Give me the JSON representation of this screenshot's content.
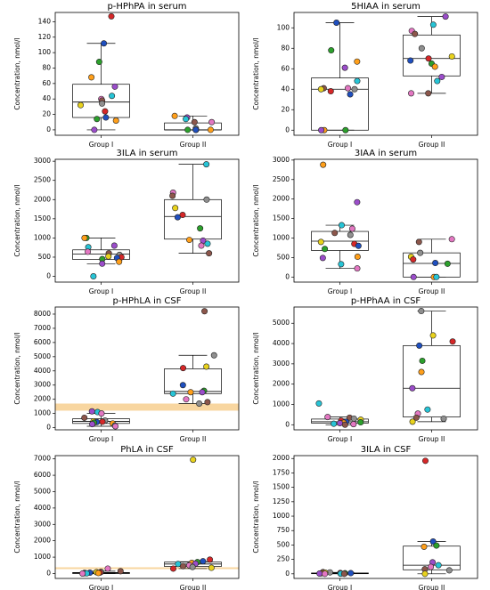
{
  "point_colors": [
    "#d62728",
    "#1f4fbf",
    "#2ca02c",
    "#ff9f1a",
    "#9b4dca",
    "#27c4d6",
    "#e377c2",
    "#8c564b",
    "#8f8f8f",
    "#e8d21d"
  ],
  "chart_data": [
    {
      "type": "box",
      "title": "p-HPhPA in serum",
      "ylabel": "Concentration, nmol/l",
      "ylim": [
        -7,
        152
      ],
      "yticks": [
        0,
        20,
        40,
        60,
        80,
        100,
        120,
        140
      ],
      "groups": [
        {
          "name": "Group I",
          "box": {
            "whislo": 0,
            "q1": 16,
            "med": 36,
            "q3": 59,
            "whishi": 112
          },
          "points": [
            147,
            112,
            88,
            68,
            56,
            44,
            40,
            38,
            34,
            32,
            24,
            16,
            14,
            12,
            0
          ]
        },
        {
          "name": "Group II",
          "box": {
            "whislo": 0,
            "q1": 0,
            "med": 0,
            "q3": 9,
            "whishi": 18
          },
          "points": [
            18,
            16,
            14,
            10,
            10,
            2,
            0,
            0,
            0,
            0,
            0
          ]
        }
      ]
    },
    {
      "type": "box",
      "title": "5HIAA in serum",
      "ylabel": "Concentration, nmol/l",
      "ylim": [
        -5,
        115
      ],
      "yticks": [
        0,
        20,
        40,
        60,
        80,
        100
      ],
      "groups": [
        {
          "name": "Group I",
          "box": {
            "whislo": 0,
            "q1": 0,
            "med": 40,
            "q3": 51,
            "whishi": 105
          },
          "points": [
            105,
            78,
            67,
            61,
            48,
            41,
            41,
            40,
            40,
            38,
            35,
            0,
            0,
            0
          ]
        },
        {
          "name": "Group II",
          "box": {
            "whislo": 36,
            "q1": 53,
            "med": 70,
            "q3": 93,
            "whishi": 111
          },
          "points": [
            111,
            103,
            97,
            94,
            80,
            72,
            70,
            68,
            65,
            62,
            52,
            48,
            36,
            36
          ]
        }
      ]
    },
    {
      "type": "box",
      "title": "3ILA in serum",
      "ylabel": "Concentration, nmol/l",
      "ylim": [
        -150,
        3050
      ],
      "yticks": [
        0,
        500,
        1000,
        1500,
        2000,
        2500,
        3000
      ],
      "groups": [
        {
          "name": "Group I",
          "box": {
            "whislo": 330,
            "q1": 440,
            "med": 580,
            "q3": 690,
            "whishi": 1000
          },
          "points": [
            1000,
            1000,
            800,
            760,
            640,
            600,
            560,
            520,
            500,
            480,
            450,
            380,
            330,
            0
          ]
        },
        {
          "name": "Group II",
          "box": {
            "whislo": 600,
            "q1": 970,
            "med": 1560,
            "q3": 2000,
            "whishi": 2920
          },
          "points": [
            2920,
            2180,
            2100,
            2000,
            1780,
            1600,
            1540,
            1250,
            950,
            930,
            850,
            800,
            600
          ]
        }
      ]
    },
    {
      "type": "box",
      "title": "3IAA in serum",
      "ylabel": "Concentration, nmol/l",
      "ylim": [
        -130,
        3020
      ],
      "yticks": [
        0,
        500,
        1000,
        1500,
        2000,
        2500,
        3000
      ],
      "groups": [
        {
          "name": "Group I",
          "box": {
            "whislo": 220,
            "q1": 680,
            "med": 920,
            "q3": 1170,
            "whishi": 1330
          },
          "points": [
            2880,
            1920,
            1330,
            1240,
            1130,
            1080,
            900,
            850,
            800,
            720,
            520,
            490,
            330,
            220
          ]
        },
        {
          "name": "Group II",
          "box": {
            "whislo": 0,
            "q1": 0,
            "med": 350,
            "q3": 620,
            "whishi": 970
          },
          "points": [
            970,
            900,
            620,
            520,
            450,
            360,
            340,
            0,
            0,
            0
          ]
        }
      ]
    },
    {
      "type": "box",
      "title": "p-HPhLA in CSF",
      "ylabel": "Concentration, nmol/l",
      "ylim": [
        -150,
        8500
      ],
      "yticks": [
        0,
        1000,
        2000,
        3000,
        4000,
        5000,
        6000,
        7000,
        8000
      ],
      "band": [
        1200,
        1700
      ],
      "groups": [
        {
          "name": "Group I",
          "box": {
            "whislo": 100,
            "q1": 300,
            "med": 440,
            "q3": 630,
            "whishi": 1000
          },
          "points": [
            1150,
            1100,
            1000,
            700,
            500,
            450,
            420,
            400,
            350,
            300,
            250,
            150,
            100
          ]
        },
        {
          "name": "Group II",
          "box": {
            "whislo": 1700,
            "q1": 2400,
            "med": 2550,
            "q3": 4150,
            "whishi": 5100
          },
          "points": [
            8200,
            5100,
            4300,
            4200,
            3000,
            2600,
            2500,
            2500,
            2400,
            2000,
            1800,
            1700
          ]
        }
      ]
    },
    {
      "type": "box",
      "title": "p-HPhAA in CSF",
      "ylabel": "Concentration, nmol/l",
      "ylim": [
        -250,
        5800
      ],
      "yticks": [
        0,
        1000,
        2000,
        3000,
        4000,
        5000
      ],
      "groups": [
        {
          "name": "Group I",
          "box": {
            "whislo": 0,
            "q1": 80,
            "med": 150,
            "q3": 280,
            "whishi": 380
          },
          "points": [
            1050,
            380,
            350,
            300,
            250,
            200,
            150,
            120,
            100,
            80,
            50,
            30,
            0
          ]
        },
        {
          "name": "Group II",
          "box": {
            "whislo": 150,
            "q1": 380,
            "med": 1800,
            "q3": 3900,
            "whishi": 5600
          },
          "points": [
            5600,
            4400,
            4100,
            3900,
            3150,
            2600,
            1800,
            750,
            550,
            350,
            300,
            150
          ]
        }
      ]
    },
    {
      "type": "box",
      "title": "PhLA in CSF",
      "ylabel": "Concentration, nmol/l",
      "ylim": [
        -300,
        7200
      ],
      "yticks": [
        0,
        1000,
        2000,
        3000,
        4000,
        5000,
        6000,
        7000
      ],
      "band": [
        270,
        380
      ],
      "groups": [
        {
          "name": "Group I",
          "box": {
            "whislo": 0,
            "q1": 0,
            "med": 30,
            "q3": 60,
            "whishi": 140
          },
          "points": [
            300,
            140,
            100,
            80,
            60,
            50,
            40,
            30,
            20,
            10,
            0
          ]
        },
        {
          "name": "Group II",
          "box": {
            "whislo": 300,
            "q1": 430,
            "med": 580,
            "q3": 700,
            "whishi": 720
          },
          "points": [
            6950,
            850,
            750,
            700,
            650,
            600,
            580,
            500,
            450,
            400,
            350,
            300
          ]
        }
      ]
    },
    {
      "type": "box",
      "title": "3ILA in CSF",
      "ylabel": "Concentration, nmol/l",
      "ylim": [
        -80,
        2050
      ],
      "yticks": [
        0,
        250,
        500,
        750,
        1000,
        1250,
        1500,
        1750,
        2000
      ],
      "groups": [
        {
          "name": "Group I",
          "box": {
            "whislo": 0,
            "q1": 2,
            "med": 8,
            "q3": 14,
            "whishi": 25
          },
          "points": [
            30,
            25,
            20,
            15,
            12,
            10,
            8,
            5,
            3,
            0,
            0
          ]
        },
        {
          "name": "Group II",
          "box": {
            "whislo": 0,
            "q1": 70,
            "med": 150,
            "q3": 480,
            "whishi": 560
          },
          "points": [
            1960,
            560,
            490,
            470,
            200,
            150,
            120,
            80,
            60,
            0
          ]
        }
      ]
    }
  ]
}
